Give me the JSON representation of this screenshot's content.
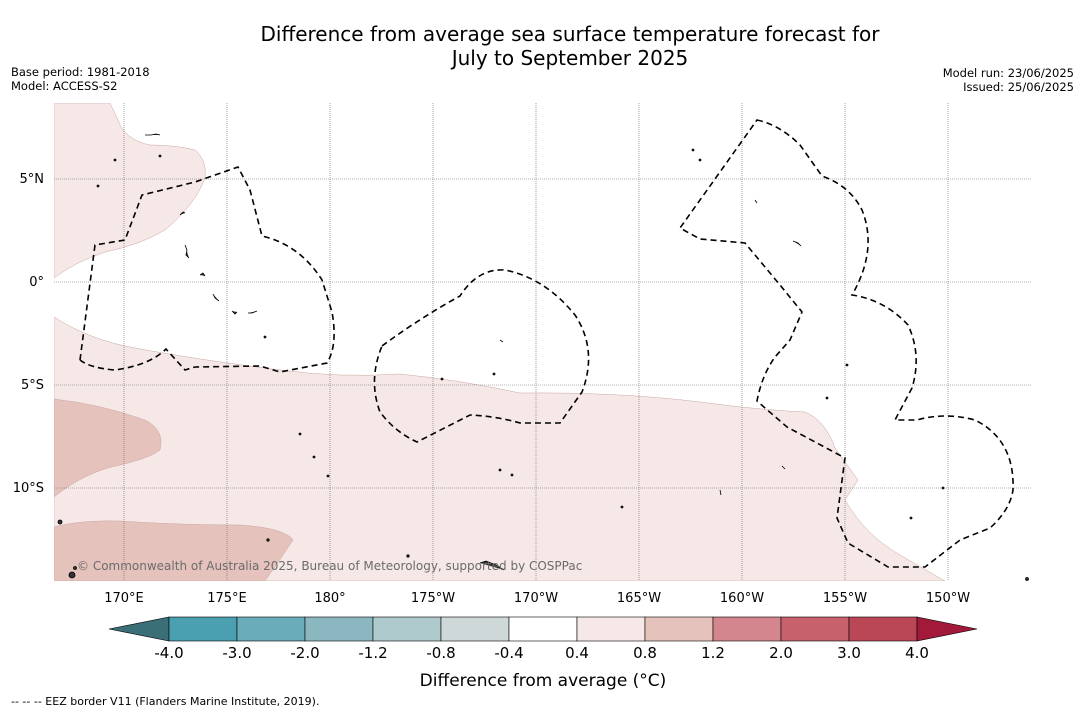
{
  "title_line1": "Difference from average sea surface temperature forecast for",
  "title_line2": "July to September 2025",
  "meta_left": {
    "base_period": "Base period: 1981-2018",
    "model": "Model: ACCESS-S2"
  },
  "meta_right": {
    "model_run": "Model run: 23/06/2025",
    "issued": "Issued: 25/06/2025"
  },
  "lat_labels": [
    "5°N",
    "0°",
    "5°S",
    "10°S"
  ],
  "lon_labels": [
    "170°E",
    "175°E",
    "180°",
    "175°W",
    "170°W",
    "165°W",
    "160°W",
    "155°W",
    "150°W"
  ],
  "copyright": "© Commonwealth of Australia 2025, Bureau of Meteorology, supported by COSPPac",
  "colorbar": {
    "label": "Difference from average (°C)",
    "ticks": [
      "-4.0",
      "-3.0",
      "-2.0",
      "-1.2",
      "-0.8",
      "-0.4",
      "0.4",
      "0.8",
      "1.2",
      "2.0",
      "3.0",
      "4.0"
    ],
    "colors": {
      "below": "#3a6f78",
      "bins": [
        "#4a9fb0",
        "#6aacba",
        "#8bb7c1",
        "#aecacd",
        "#cfd8d9",
        "#ffffff",
        "#f5e8e6",
        "#e6c2bd",
        "#d4868e",
        "#c7626d",
        "#b94756"
      ],
      "above": "#a3193a"
    }
  },
  "footer": "--  --  -- EEZ border V11 (Flanders Marine Institute, 2019)."
}
